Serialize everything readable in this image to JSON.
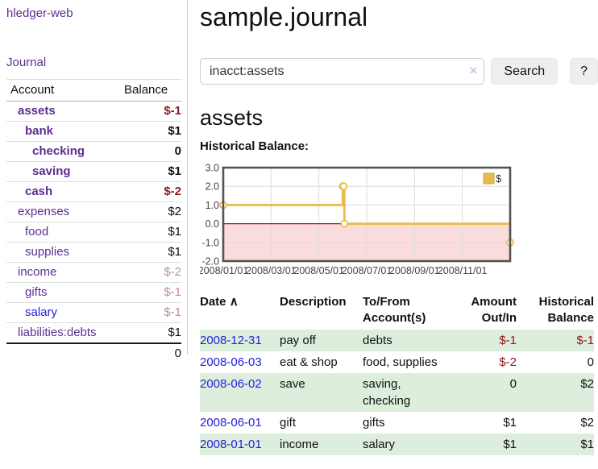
{
  "app": {
    "brand": "hledger-web",
    "nav_journal": "Journal"
  },
  "colors": {
    "link_purple": "#5c2d91",
    "link_blue": "#2222dd",
    "negative_strong": "#8b1a1a",
    "negative_soft": "#bc8f8f",
    "row_stripe_green": "#ddeedd",
    "chart_line_gold": "#e6bd4d",
    "chart_negative_fill": "#fbdcdc",
    "chart_zero_line": "#8b1a1a",
    "button_bg": "#eeeeee"
  },
  "sidebar": {
    "headers": [
      "Account",
      "Balance"
    ],
    "rows": [
      {
        "account": "assets",
        "level": 1,
        "emph": true,
        "balance": "$-1",
        "balance_tone": "negative-strong"
      },
      {
        "account": "bank",
        "level": 2,
        "emph": true,
        "balance": "$1",
        "balance_tone": "normal"
      },
      {
        "account": "checking",
        "level": 3,
        "emph": true,
        "balance": "0",
        "balance_tone": "normal"
      },
      {
        "account": "saving",
        "level": 3,
        "emph": true,
        "balance": "$1",
        "balance_tone": "normal"
      },
      {
        "account": "cash",
        "level": 2,
        "emph": true,
        "balance": "$-2",
        "balance_tone": "negative-strong"
      },
      {
        "account": "expenses",
        "level": 1,
        "emph": false,
        "balance": "$2",
        "balance_tone": "normal"
      },
      {
        "account": "food",
        "level": 2,
        "emph": false,
        "balance": "$1",
        "balance_tone": "normal"
      },
      {
        "account": "supplies",
        "level": 2,
        "emph": false,
        "balance": "$1",
        "balance_tone": "normal"
      },
      {
        "account": "income",
        "level": 1,
        "emph": false,
        "balance": "$-2",
        "balance_tone": "negative-soft"
      },
      {
        "account": "gifts",
        "level": 2,
        "emph": false,
        "balance": "$-1",
        "balance_tone": "negative-soft"
      },
      {
        "account": "salary",
        "level": 2,
        "emph": false,
        "balance": "$-1",
        "balance_tone": "negative-soft",
        "link_tone": "unvisited"
      },
      {
        "account": "liabilities:debts",
        "level": 1,
        "emph": false,
        "balance": "$1",
        "balance_tone": "normal"
      }
    ],
    "total": "0"
  },
  "header": {
    "title": "sample.journal"
  },
  "search": {
    "value": "inacct:assets",
    "clear_icon": "×",
    "button_label": "Search",
    "help_label": "?"
  },
  "main": {
    "account_heading": "assets",
    "chart_label": "Historical Balance:"
  },
  "chart_data": {
    "type": "line",
    "step": true,
    "title": "Historical Balance:",
    "x_range": [
      "2008-01-01",
      "2008-12-31"
    ],
    "ylim": [
      -2,
      3
    ],
    "x_tick_labels": [
      "2008/01/01",
      "2008/03/01",
      "2008/05/01",
      "2008/07/01",
      "2008/09/01",
      "2008/11/01"
    ],
    "y_tick_labels": [
      "3.0",
      "2.0",
      "1.0",
      "0.0",
      "-1.0",
      "-2.0"
    ],
    "series": [
      {
        "name": "$",
        "color": "#e6bd4d",
        "points": [
          [
            "2008-01-01",
            1
          ],
          [
            "2008-06-01",
            2
          ],
          [
            "2008-06-02",
            2
          ],
          [
            "2008-06-03",
            0
          ],
          [
            "2008-12-31",
            -1
          ]
        ]
      }
    ],
    "legend": {
      "label": "$",
      "position": "top-right"
    },
    "grid": true,
    "negative_fill": "#fbdcdc",
    "zero_line_color": "#8b1a1a"
  },
  "register": {
    "headers": [
      "Date",
      "Description",
      "To/From Account(s)",
      "Amount Out/In",
      "Historical Balance"
    ],
    "sort_icon": "∧",
    "rows": [
      {
        "date": "2008-12-31",
        "description": "pay off",
        "accounts": [
          "debts"
        ],
        "amount": "$-1",
        "amount_negative": true,
        "balance": "$-1",
        "balance_negative": true
      },
      {
        "date": "2008-06-03",
        "description": "eat & shop",
        "accounts": [
          "food, supplies"
        ],
        "amount": "$-2",
        "amount_negative": true,
        "balance": "0",
        "balance_negative": false
      },
      {
        "date": "2008-06-02",
        "description": "save",
        "accounts": [
          "saving,",
          "checking"
        ],
        "amount": "0",
        "amount_negative": false,
        "balance": "$2",
        "balance_negative": false
      },
      {
        "date": "2008-06-01",
        "description": "gift",
        "accounts": [
          "gifts"
        ],
        "amount": "$1",
        "amount_negative": false,
        "balance": "$2",
        "balance_negative": false
      },
      {
        "date": "2008-01-01",
        "description": "income",
        "accounts": [
          "salary"
        ],
        "amount": "$1",
        "amount_negative": false,
        "balance": "$1",
        "balance_negative": false
      }
    ]
  }
}
